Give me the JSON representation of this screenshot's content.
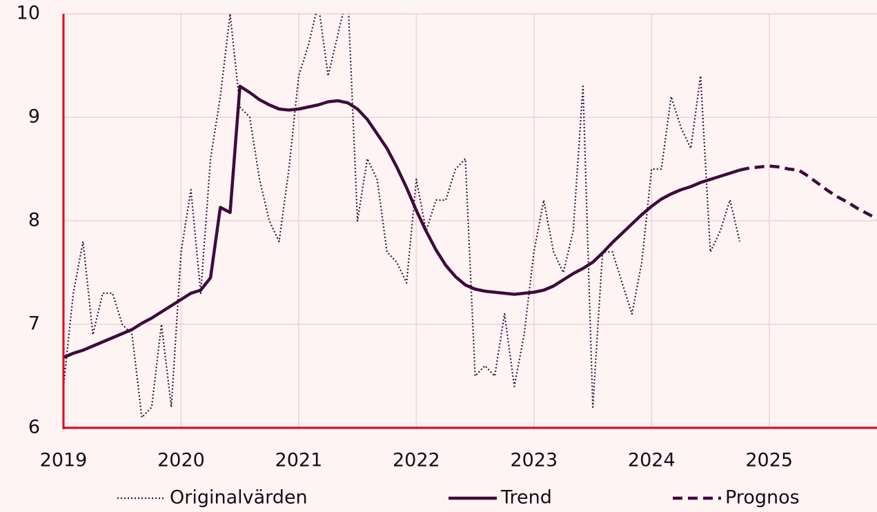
{
  "chart_data": {
    "type": "line",
    "categories": [
      "2019",
      null,
      null,
      null,
      null,
      null,
      null,
      null,
      null,
      null,
      null,
      null,
      "2020",
      null,
      null,
      null,
      null,
      null,
      null,
      null,
      null,
      null,
      null,
      null,
      "2021",
      null,
      null,
      null,
      null,
      null,
      null,
      null,
      null,
      null,
      null,
      null,
      "2022",
      null,
      null,
      null,
      null,
      null,
      null,
      null,
      null,
      null,
      null,
      null,
      "2023",
      null,
      null,
      null,
      null,
      null,
      null,
      null,
      null,
      null,
      null,
      null,
      "2024",
      null,
      null,
      null,
      null,
      null,
      null,
      null,
      null,
      null,
      null,
      null,
      "2025",
      null,
      null,
      null,
      null,
      null,
      null,
      null,
      null,
      null,
      null,
      null
    ],
    "series": [
      {
        "name": "Originalvärden",
        "color": "#3d0c3b",
        "style": "dotted",
        "values": [
          6.4,
          7.3,
          7.8,
          6.9,
          7.3,
          7.3,
          7.0,
          6.9,
          6.1,
          6.2,
          7.0,
          6.2,
          7.7,
          8.3,
          7.3,
          8.6,
          9.2,
          10.0,
          9.1,
          9.0,
          8.4,
          8.0,
          7.8,
          8.5,
          9.4,
          9.7,
          10.1,
          9.4,
          9.8,
          10.2,
          8.0,
          8.6,
          8.4,
          7.7,
          7.6,
          7.4,
          8.4,
          7.9,
          8.2,
          8.2,
          8.5,
          8.6,
          6.5,
          6.6,
          6.5,
          7.1,
          6.4,
          6.9,
          7.7,
          8.2,
          7.7,
          7.5,
          7.9,
          9.3,
          6.2,
          7.7,
          7.7,
          7.4,
          7.1,
          7.6,
          8.5,
          8.5,
          9.2,
          8.9,
          8.7,
          9.4,
          7.7,
          7.9,
          8.2,
          7.8,
          null,
          null,
          null,
          null,
          null,
          null,
          null,
          null,
          null,
          null,
          null,
          null,
          null,
          null
        ]
      },
      {
        "name": "Trend",
        "color": "#3d0c3b",
        "style": "solid",
        "values": [
          6.68,
          6.72,
          6.75,
          6.79,
          6.83,
          6.87,
          6.91,
          6.95,
          7.01,
          7.06,
          7.12,
          7.18,
          7.24,
          7.3,
          7.33,
          7.45,
          8.13,
          8.08,
          9.3,
          9.24,
          9.17,
          9.12,
          9.08,
          9.07,
          9.08,
          9.1,
          9.12,
          9.15,
          9.16,
          9.14,
          9.08,
          8.98,
          8.84,
          8.7,
          8.52,
          8.32,
          8.1,
          7.9,
          7.72,
          7.57,
          7.46,
          7.38,
          7.34,
          7.32,
          7.31,
          7.3,
          7.29,
          7.3,
          7.31,
          7.33,
          7.37,
          7.43,
          7.49,
          7.54,
          7.6,
          7.69,
          7.79,
          7.88,
          7.97,
          8.06,
          8.14,
          8.21,
          8.26,
          8.3,
          8.33,
          8.37,
          8.4,
          8.43,
          8.46,
          8.49,
          null,
          null,
          null,
          null,
          null,
          null,
          null,
          null,
          null,
          null,
          null,
          null,
          null,
          null
        ]
      },
      {
        "name": "Prognos",
        "color": "#3d0c3b",
        "style": "dashed",
        "values": [
          null,
          null,
          null,
          null,
          null,
          null,
          null,
          null,
          null,
          null,
          null,
          null,
          null,
          null,
          null,
          null,
          null,
          null,
          null,
          null,
          null,
          null,
          null,
          null,
          null,
          null,
          null,
          null,
          null,
          null,
          null,
          null,
          null,
          null,
          null,
          null,
          null,
          null,
          null,
          null,
          null,
          null,
          null,
          null,
          null,
          null,
          null,
          null,
          null,
          null,
          null,
          null,
          null,
          null,
          null,
          null,
          null,
          null,
          null,
          null,
          null,
          null,
          null,
          null,
          null,
          null,
          null,
          null,
          null,
          8.49,
          8.51,
          8.52,
          8.53,
          8.52,
          8.5,
          8.49,
          8.43,
          8.36,
          8.29,
          8.23,
          8.18,
          8.12,
          8.07,
          8.02
        ]
      }
    ],
    "ylim": [
      6,
      10
    ],
    "yticks": [
      6,
      7,
      8,
      9,
      10
    ],
    "grid": true
  }
}
